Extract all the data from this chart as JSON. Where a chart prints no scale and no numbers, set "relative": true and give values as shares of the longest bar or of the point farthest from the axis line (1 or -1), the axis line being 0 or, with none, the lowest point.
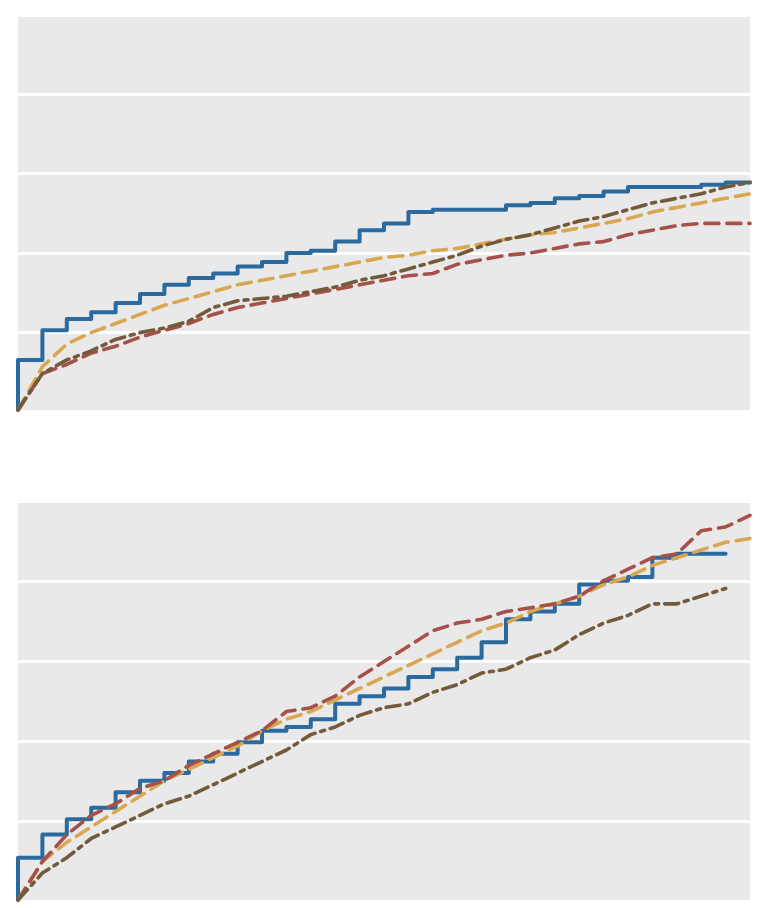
{
  "chart_data": [
    {
      "type": "line",
      "relative": true,
      "categories": [
        null,
        null,
        null,
        null,
        null,
        null,
        null,
        null,
        null,
        null,
        null,
        null,
        null,
        null,
        null,
        null,
        null,
        null,
        null,
        null,
        null,
        null,
        null,
        null,
        null,
        null,
        null,
        null,
        null,
        null,
        null
      ],
      "series": [
        {
          "type": "step",
          "color": "#2a6a9e",
          "line_style": "solid",
          "values": [
            0,
            0.22,
            0.35,
            0.4,
            0.43,
            0.47,
            0.51,
            0.55,
            0.58,
            0.6,
            0.63,
            0.65,
            0.69,
            0.7,
            0.74,
            0.79,
            0.82,
            0.87,
            0.88,
            0.88,
            0.88,
            0.9,
            0.91,
            0.93,
            0.94,
            0.96,
            0.98,
            0.98,
            0.98,
            0.99,
            1.0
          ]
        },
        {
          "color": "#d9a652",
          "line_style": "dashed",
          "values": [
            0,
            0.19,
            0.29,
            0.34,
            0.38,
            0.42,
            0.46,
            0.49,
            0.52,
            0.55,
            0.57,
            0.59,
            0.61,
            0.63,
            0.65,
            0.67,
            0.68,
            0.7,
            0.71,
            0.73,
            0.75,
            0.77,
            0.78,
            0.8,
            0.82,
            0.84,
            0.87,
            0.89,
            0.91,
            0.93,
            0.95
          ]
        },
        {
          "color": "#a6504a",
          "line_style": "dashed",
          "values": [
            0,
            0.16,
            0.2,
            0.25,
            0.28,
            0.32,
            0.35,
            0.38,
            0.42,
            0.45,
            0.47,
            0.49,
            0.51,
            0.53,
            0.55,
            0.57,
            0.59,
            0.6,
            0.64,
            0.66,
            0.68,
            0.69,
            0.71,
            0.73,
            0.74,
            0.77,
            0.79,
            0.81,
            0.82,
            0.82,
            0.82
          ]
        },
        {
          "color": "#735a3a",
          "line_style": "dashdot",
          "values": [
            0,
            0.16,
            0.22,
            0.26,
            0.31,
            0.34,
            0.36,
            0.39,
            0.45,
            0.48,
            0.49,
            0.5,
            0.52,
            0.54,
            0.57,
            0.59,
            0.62,
            0.65,
            0.68,
            0.72,
            0.75,
            0.77,
            0.8,
            0.83,
            0.85,
            0.88,
            0.91,
            0.93,
            0.95,
            0.98,
            1.0
          ]
        }
      ]
    },
    {
      "type": "line",
      "relative": true,
      "categories": [
        null,
        null,
        null,
        null,
        null,
        null,
        null,
        null,
        null,
        null,
        null,
        null,
        null,
        null,
        null,
        null,
        null,
        null,
        null,
        null,
        null,
        null,
        null,
        null,
        null,
        null,
        null,
        null,
        null,
        null,
        null
      ],
      "series": [
        {
          "type": "step",
          "color": "#2a6a9e",
          "line_style": "solid",
          "values": [
            0,
            0.11,
            0.17,
            0.21,
            0.24,
            0.28,
            0.31,
            0.33,
            0.36,
            0.38,
            0.41,
            0.44,
            0.45,
            0.47,
            0.51,
            0.53,
            0.55,
            0.58,
            0.6,
            0.63,
            0.67,
            0.73,
            0.75,
            0.77,
            0.82,
            0.83,
            0.84,
            0.89,
            0.9,
            0.9,
            null
          ]
        },
        {
          "color": "#d9a652",
          "line_style": "dashed",
          "values": [
            0,
            0.1,
            0.15,
            0.19,
            0.23,
            0.27,
            0.31,
            0.34,
            0.37,
            0.4,
            0.44,
            0.47,
            0.49,
            0.52,
            0.55,
            0.58,
            0.61,
            0.64,
            0.67,
            0.7,
            0.72,
            0.75,
            0.77,
            0.79,
            0.82,
            0.84,
            0.87,
            0.89,
            0.91,
            0.93,
            0.94
          ]
        },
        {
          "color": "#a6504a",
          "line_style": "dashed",
          "values": [
            0,
            0.1,
            0.17,
            0.22,
            0.25,
            0.29,
            0.31,
            0.35,
            0.38,
            0.41,
            0.44,
            0.49,
            0.5,
            0.53,
            0.58,
            0.62,
            0.66,
            0.7,
            0.72,
            0.73,
            0.75,
            0.76,
            0.77,
            0.79,
            0.83,
            0.86,
            0.89,
            0.9,
            0.96,
            0.97,
            1.0
          ]
        },
        {
          "color": "#735a3a",
          "line_style": "dashdot",
          "values": [
            0,
            0.07,
            0.11,
            0.16,
            0.19,
            0.22,
            0.25,
            0.27,
            0.3,
            0.33,
            0.36,
            0.39,
            0.43,
            0.45,
            0.48,
            0.5,
            0.51,
            0.54,
            0.56,
            0.59,
            0.6,
            0.63,
            0.65,
            0.69,
            0.72,
            0.74,
            0.77,
            0.77,
            0.79,
            0.81,
            null
          ]
        }
      ]
    }
  ]
}
